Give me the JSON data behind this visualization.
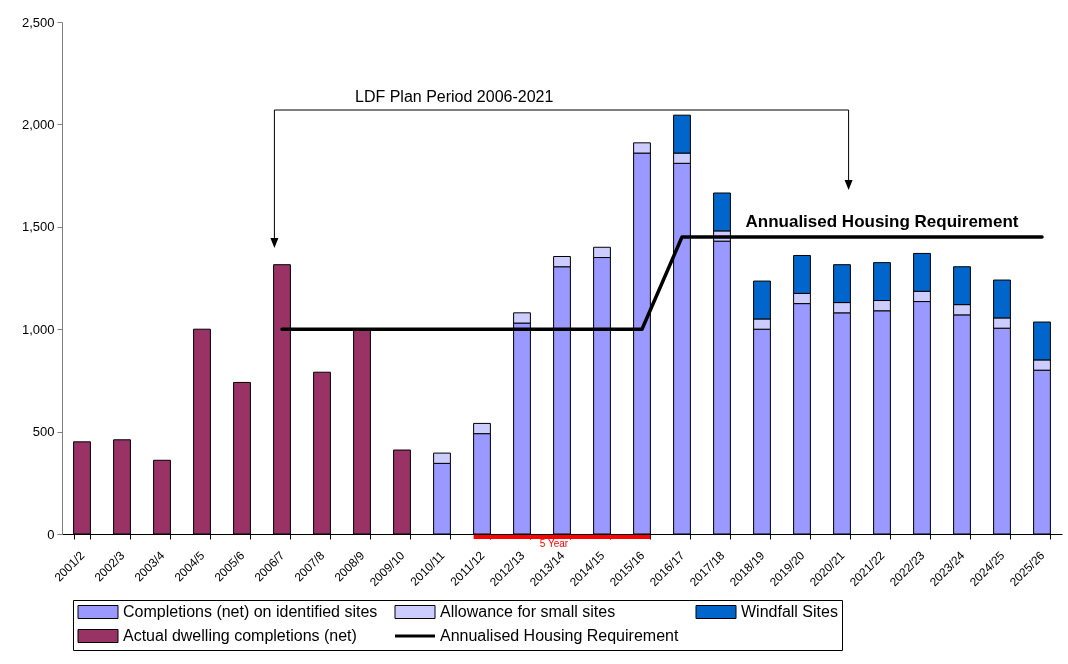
{
  "chart_data": {
    "type": "bar",
    "stacked": true,
    "categories": [
      "2001/2",
      "2002/3",
      "2003/4",
      "2004/5",
      "2005/6",
      "2006/7",
      "2007/8",
      "2008/9",
      "2009/10",
      "2010/11",
      "2011/12",
      "2012/13",
      "2013/14",
      "2014/15",
      "2015/16",
      "2016/17",
      "2017/18",
      "2018/19",
      "2019/20",
      "2020/21",
      "2021/22",
      "2022/23",
      "2023/24",
      "2024/25",
      "2025/26"
    ],
    "series": [
      {
        "name": "Completions (net) on identified sites",
        "color": "#9999ff",
        "values": [
          null,
          null,
          null,
          null,
          null,
          null,
          null,
          null,
          null,
          345,
          490,
          1030,
          1305,
          1350,
          1860,
          1810,
          1430,
          1000,
          1125,
          1080,
          1090,
          1135,
          1070,
          1005,
          800
        ]
      },
      {
        "name": "Allowance for small sites",
        "color": "#ccccff",
        "values": [
          null,
          null,
          null,
          null,
          null,
          null,
          null,
          null,
          null,
          50,
          50,
          50,
          50,
          50,
          50,
          50,
          50,
          50,
          50,
          50,
          50,
          50,
          50,
          50,
          50
        ]
      },
      {
        "name": "Windfall Sites",
        "color": "#0066cc",
        "values": [
          null,
          null,
          null,
          null,
          null,
          null,
          null,
          null,
          null,
          null,
          null,
          null,
          null,
          null,
          null,
          185,
          185,
          185,
          185,
          185,
          185,
          185,
          185,
          185,
          185
        ]
      },
      {
        "name": "Actual dwelling completions (net)",
        "color": "#993366",
        "values": [
          450,
          460,
          360,
          1000,
          740,
          1315,
          790,
          1000,
          410,
          null,
          null,
          null,
          null,
          null,
          null,
          null,
          null,
          null,
          null,
          null,
          null,
          null,
          null,
          null,
          null
        ]
      },
      {
        "name": "Annualised Housing Requirement",
        "type": "line",
        "color": "#000000",
        "values": [
          null,
          null,
          null,
          null,
          null,
          1000,
          1000,
          1000,
          1000,
          1000,
          1000,
          1000,
          1000,
          1000,
          1000,
          1450,
          1450,
          1450,
          1450,
          1450,
          1450,
          1450,
          1450,
          1450,
          1450
        ]
      }
    ],
    "ylim": [
      0,
      2500
    ],
    "yticks": [
      0,
      500,
      {
        "value": 1000,
        "label": "1,000"
      },
      {
        "value": 1500,
        "label": "1,500"
      },
      {
        "value": 2000,
        "label": "2,000"
      },
      {
        "value": 2500,
        "label": "2,500"
      }
    ],
    "legend": "bottom",
    "annotations": [
      "LDF Plan Period 2006-2021",
      {
        "text": "Annualised Housing Requirement",
        "x": "2021/22",
        "y": 1450
      },
      {
        "text": "5 Year",
        "x": "2013/14",
        "y": 0
      }
    ]
  }
}
